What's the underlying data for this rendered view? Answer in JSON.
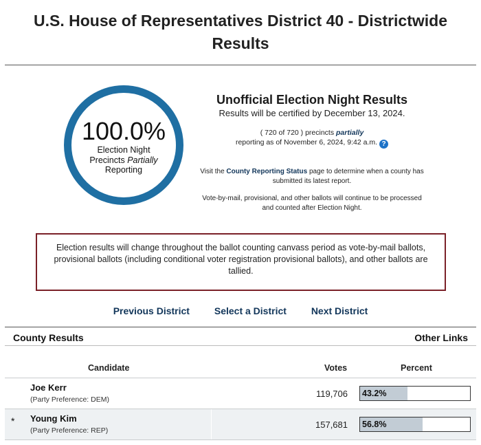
{
  "page_title_line1": "U.S. House of Representatives District 40 - Districtwide",
  "page_title_line2": "Results",
  "ring": {
    "percent": "100.0%",
    "line1": "Election Night",
    "line2_prefix": "Precincts ",
    "line2_em": "Partially",
    "line3": "Reporting"
  },
  "info": {
    "title": "Unofficial Election Night Results",
    "certified": "Results will be certified by December 13, 2024.",
    "precincts_prefix": "( 720 of 720 ) precincts ",
    "precincts_partial": "partially",
    "precincts_line2": "reporting as of November 6, 2024, 9:42 a.m.",
    "help_glyph": "?",
    "visit_prefix": "Visit the ",
    "visit_link": "County Reporting Status",
    "visit_suffix": " page to determine when a county has submitted its latest report.",
    "vbm": "Vote-by-mail, provisional, and other ballots will continue to be processed and counted after Election Night."
  },
  "notice": "Election results will change throughout the ballot counting canvass period as vote-by-mail ballots, provisional ballots (including conditional voter registration provisional ballots), and other ballots are tallied.",
  "nav": {
    "previous": "Previous District",
    "select": "Select a District",
    "next": "Next District"
  },
  "results_header": {
    "county_results": "County Results",
    "other_links": "Other Links"
  },
  "columns": {
    "candidate": "Candidate",
    "votes": "Votes",
    "percent": "Percent"
  },
  "candidates": [
    {
      "winner_mark": "",
      "name": "Joe Kerr",
      "party": "(Party Preference: DEM)",
      "votes": "119,706",
      "percent_label": "43.2%",
      "percent": 43.2
    },
    {
      "winner_mark": "*",
      "name": "Young Kim",
      "party": "(Party Preference: REP)",
      "votes": "157,681",
      "percent_label": "56.8%",
      "percent": 56.8
    }
  ],
  "colors": {
    "ring": "#1f6fa3",
    "notice_border": "#7a2027",
    "link": "#12365a",
    "bar_fill": "#c2ccd5"
  },
  "icons": {
    "help": "help-icon"
  }
}
